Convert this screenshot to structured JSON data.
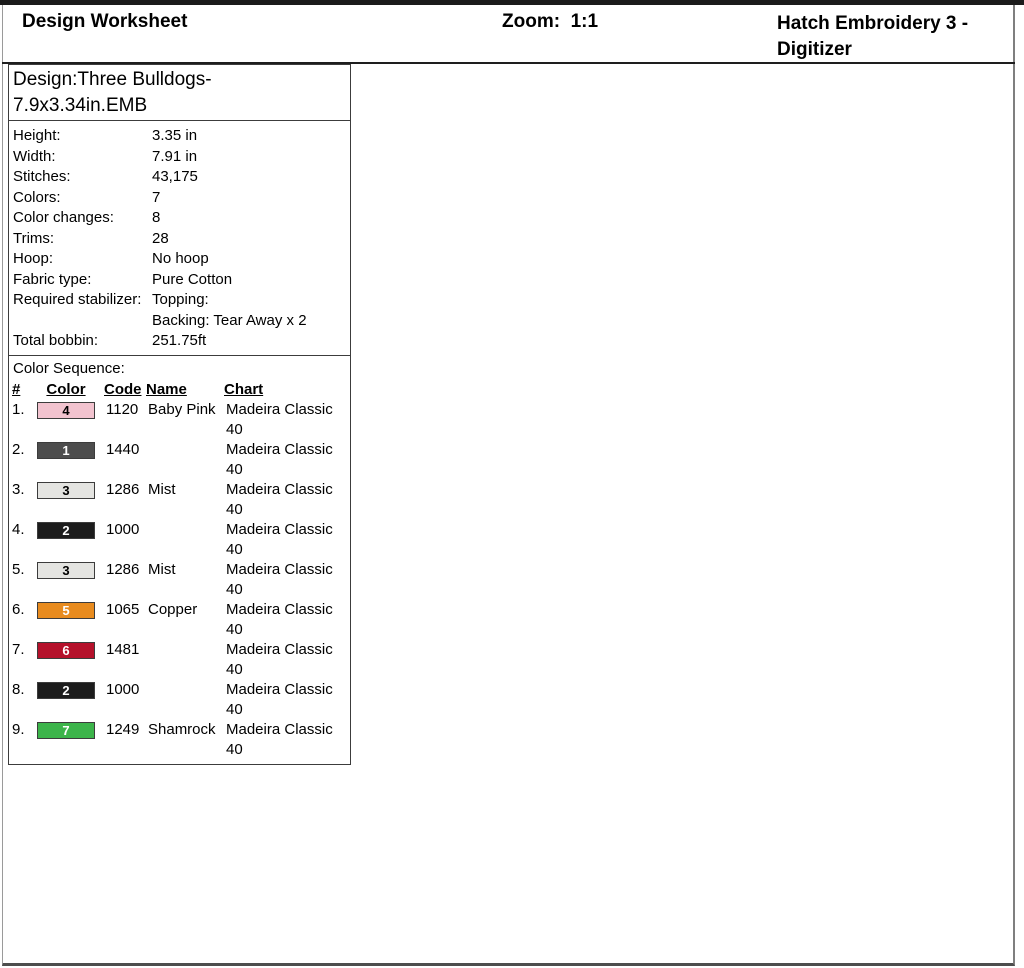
{
  "header": {
    "title": "Design Worksheet",
    "zoom": "Zoom:  1:1",
    "app_name_line1": "Hatch Embroidery 3 -",
    "app_name_line2": "Digitizer"
  },
  "design_info": {
    "title_line1": "Design:Three Bulldogs-",
    "title_line2": "7.9x3.34in.EMB",
    "rows": [
      {
        "label": "Height:",
        "value": "3.35 in"
      },
      {
        "label": "Width:",
        "value": "7.91 in"
      },
      {
        "label": "Stitches:",
        "value": "43,175"
      },
      {
        "label": "Colors:",
        "value": "7"
      },
      {
        "label": "Color changes:",
        "value": "8"
      },
      {
        "label": "Trims:",
        "value": "28"
      },
      {
        "label": "Hoop:",
        "value": "No hoop"
      },
      {
        "label": "Fabric type:",
        "value": "Pure Cotton"
      },
      {
        "label": "Required stabilizer:",
        "value": "Topping:",
        "value2": "Backing: Tear Away x 2"
      },
      {
        "label": "Total bobbin:",
        "value": "251.75ft"
      }
    ]
  },
  "color_sequence": {
    "heading": "Color Sequence:",
    "columns": {
      "num": "#",
      "color": "Color",
      "code": "Code",
      "name": "Name",
      "chart": "Chart"
    },
    "rows": [
      {
        "num": "1.",
        "block": "4",
        "bg": "#f2c3cf",
        "fg": "#000000",
        "code": "1120",
        "name": "Baby Pink",
        "chart": "Madeira Classic 40"
      },
      {
        "num": "2.",
        "block": "1",
        "bg": "#4d4d4d",
        "fg": "#ffffff",
        "code": "1440",
        "name": "",
        "chart": "Madeira Classic 40"
      },
      {
        "num": "3.",
        "block": "3",
        "bg": "#e4e4e1",
        "fg": "#000000",
        "code": "1286",
        "name": "Mist",
        "chart": "Madeira Classic 40"
      },
      {
        "num": "4.",
        "block": "2",
        "bg": "#1c1c1c",
        "fg": "#ffffff",
        "code": "1000",
        "name": "",
        "chart": "Madeira Classic 40"
      },
      {
        "num": "5.",
        "block": "3",
        "bg": "#e4e4e1",
        "fg": "#000000",
        "code": "1286",
        "name": "Mist",
        "chart": "Madeira Classic 40"
      },
      {
        "num": "6.",
        "block": "5",
        "bg": "#e88b1e",
        "fg": "#ffffff",
        "code": "1065",
        "name": "Copper",
        "chart": "Madeira Classic 40"
      },
      {
        "num": "7.",
        "block": "6",
        "bg": "#b5112b",
        "fg": "#ffffff",
        "code": "1481",
        "name": "",
        "chart": "Madeira Classic 40"
      },
      {
        "num": "8.",
        "block": "2",
        "bg": "#1c1c1c",
        "fg": "#ffffff",
        "code": "1000",
        "name": "",
        "chart": "Madeira Classic 40"
      },
      {
        "num": "9.",
        "block": "7",
        "bg": "#3cb44a",
        "fg": "#ffffff",
        "code": "1249",
        "name": "Shamrock",
        "chart": "Madeira Classic 40"
      }
    ]
  }
}
